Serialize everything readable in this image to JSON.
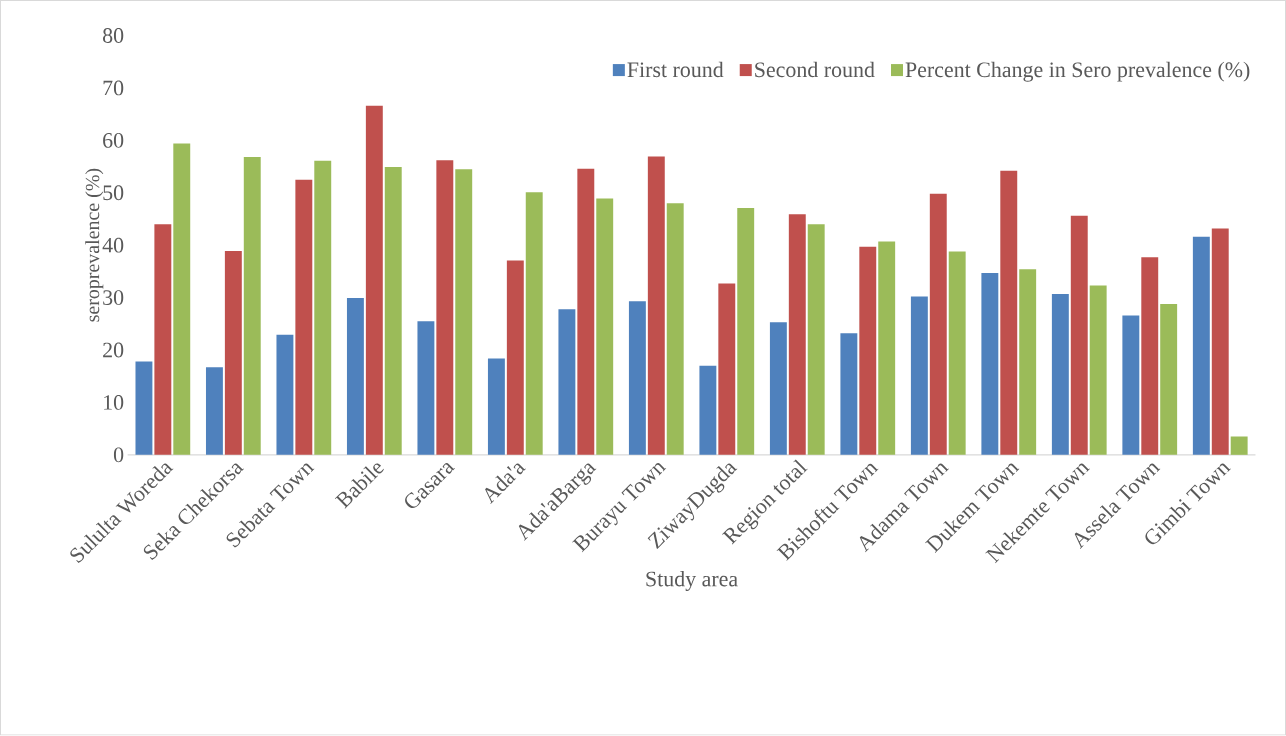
{
  "chart_data": {
    "type": "bar",
    "xlabel": "Study area",
    "ylabel": "seroprevalence (%)",
    "categories": [
      "Sululta Woreda",
      "Seka Chekorsa",
      "Sebata Town",
      "Babile",
      "Gasara",
      "Ada'a",
      "Ada'aBarga",
      "Burayu Town",
      "ZiwayDugda",
      "Region total",
      "Bishoftu Town",
      "Adama Town",
      "Dukem Town",
      "Nekemte Town",
      "Assela Town",
      "Gimbi Town"
    ],
    "series": [
      {
        "name": "First round",
        "color": "#4f81bd",
        "values": [
          17.8,
          16.7,
          22.9,
          29.9,
          25.5,
          18.4,
          27.8,
          29.3,
          17.0,
          25.3,
          23.2,
          30.2,
          34.7,
          30.7,
          26.6,
          41.6
        ]
      },
      {
        "name": "Second round",
        "color": "#c0504d",
        "values": [
          44.0,
          38.9,
          52.5,
          66.6,
          56.2,
          37.1,
          54.6,
          56.9,
          32.7,
          45.9,
          39.7,
          49.8,
          54.2,
          45.6,
          37.7,
          43.2
        ]
      },
      {
        "name": "Percent Change in Sero prevalence (%)",
        "color": "#9bbb59",
        "values": [
          59.4,
          56.8,
          56.1,
          54.9,
          54.5,
          50.1,
          48.9,
          48.0,
          47.1,
          44.0,
          40.7,
          38.8,
          35.4,
          32.3,
          28.8,
          3.5
        ]
      }
    ],
    "ylim": [
      0,
      80
    ],
    "yticks": [
      0,
      10,
      20,
      30,
      40,
      50,
      60,
      70,
      80
    ],
    "grid": false,
    "legend": "top right"
  }
}
